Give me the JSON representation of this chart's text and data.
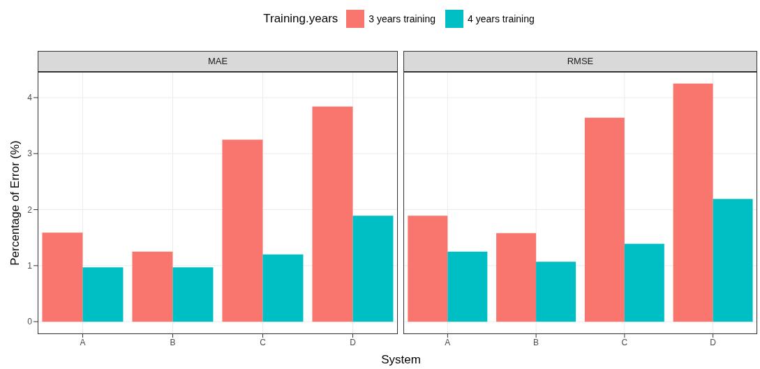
{
  "chart_data": [
    {
      "type": "bar",
      "title": "MAE",
      "categories": [
        "A",
        "B",
        "C",
        "D"
      ],
      "ylabel": "Percentage of Error (%)",
      "xlabel": "System",
      "legend": "top",
      "legend_title": "Training.years",
      "grid": true,
      "ylim": [
        -0.21,
        4.46
      ],
      "yticks": [
        0,
        1,
        2,
        3,
        4
      ],
      "series": [
        {
          "name": "3 years training",
          "color": "#f8766d",
          "values": [
            1.59,
            1.25,
            3.25,
            3.84
          ]
        },
        {
          "name": "4 years training",
          "color": "#00bfc4",
          "values": [
            0.97,
            0.97,
            1.2,
            1.89
          ]
        }
      ]
    },
    {
      "type": "bar",
      "title": "RMSE",
      "categories": [
        "A",
        "B",
        "C",
        "D"
      ],
      "grid": true,
      "ylim": [
        -0.21,
        4.46
      ],
      "yticks": [
        0,
        1,
        2,
        3,
        4
      ],
      "tick_labels": "x",
      "series": [
        {
          "color": "#f8766d",
          "values": [
            1.89,
            1.58,
            3.64,
            4.25
          ]
        },
        {
          "color": "#00bfc4",
          "values": [
            1.25,
            1.07,
            1.39,
            2.19
          ]
        }
      ]
    }
  ]
}
